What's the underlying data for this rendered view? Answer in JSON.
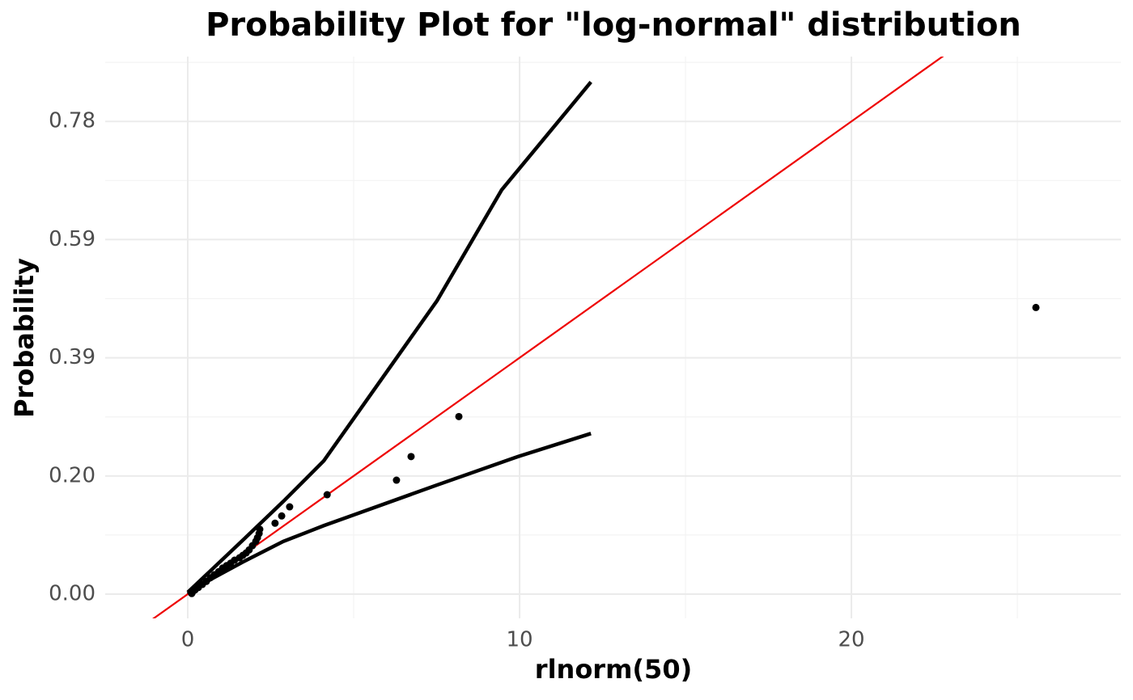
{
  "chart_data": {
    "type": "scatter",
    "title": "Probability Plot for \"log-normal\" distribution",
    "x_label": "rlnorm(50)",
    "y_label": "Probability",
    "x": [
      0.1,
      0.12,
      0.15,
      0.22,
      0.32,
      0.44,
      0.56,
      0.68,
      0.8,
      0.93,
      1.05,
      1.17,
      1.29,
      1.41,
      1.56,
      1.66,
      1.76,
      1.85,
      1.95,
      2.05,
      2.1,
      2.15,
      2.17,
      2.63,
      2.83,
      3.07,
      4.2,
      6.29,
      6.73,
      8.17,
      25.56
    ],
    "values": [
      0.003,
      0.001,
      0.004,
      0.007,
      0.011,
      0.016,
      0.021,
      0.027,
      0.032,
      0.037,
      0.043,
      0.047,
      0.051,
      0.056,
      0.06,
      0.064,
      0.068,
      0.073,
      0.08,
      0.087,
      0.093,
      0.1,
      0.107,
      0.117,
      0.129,
      0.144,
      0.164,
      0.188,
      0.227,
      0.293,
      0.473
    ],
    "color": "#000000",
    "reference_line": {
      "slope": 0.039,
      "intercept": 0,
      "color": "#ee0000"
    },
    "upper_band": {
      "x": [
        0,
        1.66,
        2.88,
        4.1,
        5.56,
        7.51,
        9.46,
        12.15
      ],
      "y": [
        0.003,
        0.089,
        0.153,
        0.22,
        0.333,
        0.484,
        0.667,
        0.845
      ],
      "color": "#000000"
    },
    "lower_band": {
      "x": [
        0,
        0.68,
        1.66,
        2.88,
        4.1,
        7.51,
        9.95,
        12.15
      ],
      "y": [
        0,
        0.024,
        0.053,
        0.087,
        0.113,
        0.18,
        0.227,
        0.265
      ],
      "color": "#000000"
    },
    "xlim": [
      -2.488,
      28.12
    ],
    "ylim": [
      -0.04,
      0.887
    ],
    "xticks": [
      0,
      10,
      20
    ],
    "yticks": [
      {
        "value": 0,
        "label": "0.00"
      },
      {
        "value": 0.195,
        "label": "0.20"
      },
      {
        "value": 0.39,
        "label": "0.39"
      },
      {
        "value": 0.585,
        "label": "0.59"
      },
      {
        "value": 0.78,
        "label": "0.78"
      }
    ],
    "xminorticks": [
      5,
      15,
      25
    ],
    "yminorticks": [
      0.0975,
      0.2925,
      0.4875,
      0.6825,
      0.8775
    ],
    "grid": true
  }
}
